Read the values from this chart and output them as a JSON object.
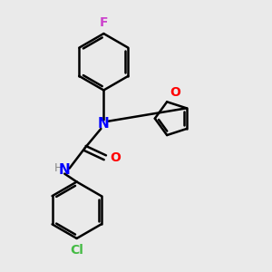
{
  "background_color": "#eaeaea",
  "bond_color": "#000000",
  "N_color": "#0000ff",
  "O_color": "#ff0000",
  "F_color": "#cc44cc",
  "Cl_color": "#44bb44",
  "H_color": "#888888",
  "line_width": 1.8,
  "figsize": [
    3.0,
    3.0
  ],
  "dpi": 100,
  "xlim": [
    0,
    10
  ],
  "ylim": [
    0,
    10
  ]
}
